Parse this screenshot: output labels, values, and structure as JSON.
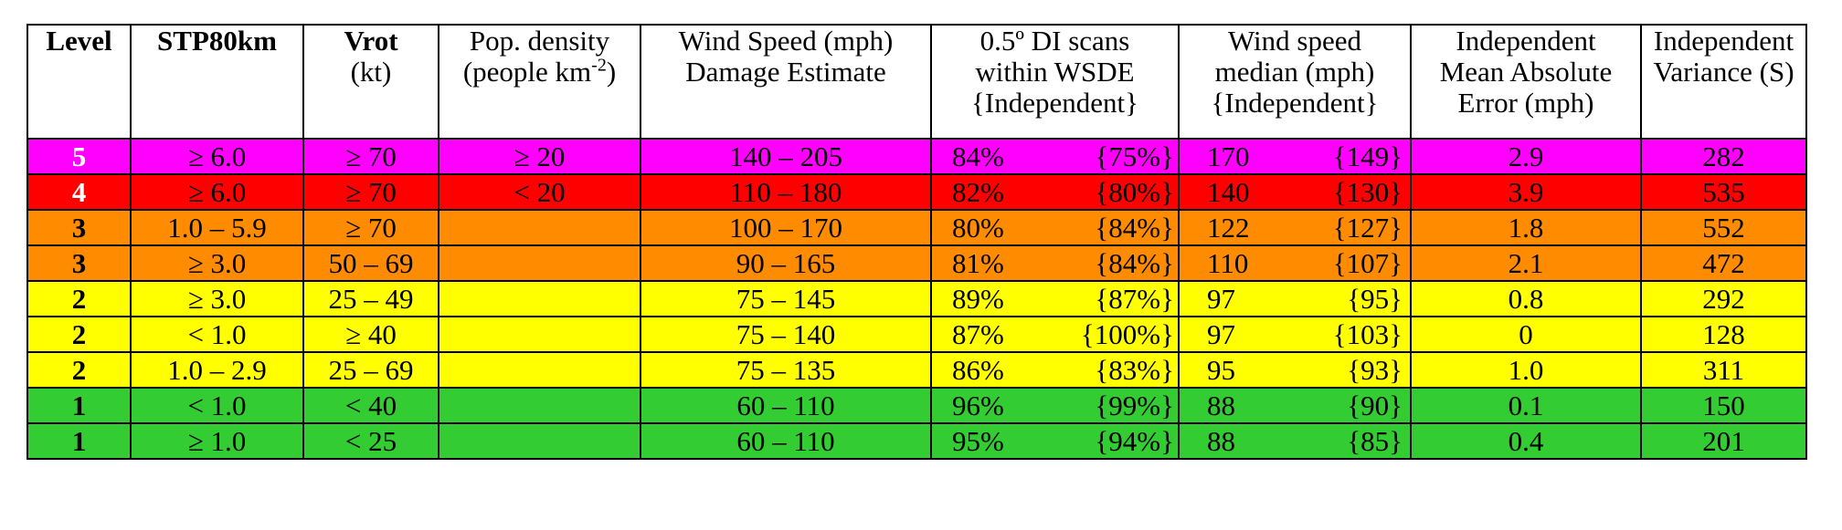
{
  "header": [
    {
      "lines": [
        "Level"
      ],
      "bold": true
    },
    {
      "lines": [
        "STP80km"
      ],
      "bold": true
    },
    {
      "lines": [
        "Vrot",
        "(kt)"
      ],
      "bold_first": true
    },
    {
      "lines": [
        "Pop. density",
        "(people km",
        "-2",
        ")"
      ]
    },
    {
      "lines": [
        "Wind Speed (mph)",
        "Damage Estimate"
      ]
    },
    {
      "lines": [
        "0.5º DI scans",
        "within WSDE",
        "{Independent}"
      ]
    },
    {
      "lines": [
        "Wind speed",
        "median (mph)",
        "{Independent}"
      ]
    },
    {
      "lines": [
        "Independent",
        "Mean Absolute",
        "Error (mph)"
      ]
    },
    {
      "lines": [
        "Independent",
        "Variance (S)"
      ]
    }
  ],
  "rows": [
    {
      "level": "5",
      "color": "#ff00ff",
      "stp": "≥ 6.0",
      "vrot": "≥ 70",
      "pop": "≥ 20",
      "wsde": "140 – 205",
      "scans": "84%",
      "scans_ind": "{75%}",
      "median": "170",
      "median_ind": "{149}",
      "mae": "2.9",
      "variance": "282"
    },
    {
      "level": "4",
      "color": "#ff0000",
      "stp": "≥ 6.0",
      "vrot": "≥ 70",
      "pop": "< 20",
      "wsde": "110 – 180",
      "scans": "82%",
      "scans_ind": "{80%}",
      "median": "140",
      "median_ind": "{130}",
      "mae": "3.9",
      "variance": "535"
    },
    {
      "level": "3",
      "color": "#ff8c00",
      "stp": "1.0 – 5.9",
      "vrot": "≥ 70",
      "pop": "",
      "wsde": "100 – 170",
      "scans": "80%",
      "scans_ind": "{84%}",
      "median": "122",
      "median_ind": "{127}",
      "mae": "1.8",
      "variance": "552"
    },
    {
      "level": "3",
      "color": "#ff8c00",
      "stp": "≥ 3.0",
      "vrot": "50 – 69",
      "pop": "",
      "wsde": "90 – 165",
      "scans": "81%",
      "scans_ind": "{84%}",
      "median": "110",
      "median_ind": "{107}",
      "mae": "2.1",
      "variance": "472"
    },
    {
      "level": "2",
      "color": "#ffff00",
      "stp": "≥ 3.0",
      "vrot": "25 – 49",
      "pop": "",
      "wsde": "75 – 145",
      "scans": "89%",
      "scans_ind": "{87%}",
      "median": "97",
      "median_ind": "{95}",
      "mae": "0.8",
      "variance": "292"
    },
    {
      "level": "2",
      "color": "#ffff00",
      "stp": "< 1.0",
      "vrot": "≥ 40",
      "pop": "",
      "wsde": "75 – 140",
      "scans": "87%",
      "scans_ind": "{100%}",
      "median": "97",
      "median_ind": "{103}",
      "mae": "0",
      "variance": "128"
    },
    {
      "level": "2",
      "color": "#ffff00",
      "stp": "1.0 – 2.9",
      "vrot": "25 – 69",
      "pop": "",
      "wsde": "75 – 135",
      "scans": "86%",
      "scans_ind": "{83%}",
      "median": "95",
      "median_ind": "{93}",
      "mae": "1.0",
      "variance": "311"
    },
    {
      "level": "1",
      "color": "#33cc33",
      "stp": "< 1.0",
      "vrot": "< 40",
      "pop": "",
      "wsde": "60 – 110",
      "scans": "96%",
      "scans_ind": "{99%}",
      "median": "88",
      "median_ind": "{90}",
      "mae": "0.1",
      "variance": "150"
    },
    {
      "level": "1",
      "color": "#33cc33",
      "stp": "≥ 1.0",
      "vrot": "< 25",
      "pop": "",
      "wsde": "60 – 110",
      "scans": "95%",
      "scans_ind": "{94%}",
      "median": "88",
      "median_ind": "{85}",
      "mae": "0.4",
      "variance": "201"
    }
  ]
}
